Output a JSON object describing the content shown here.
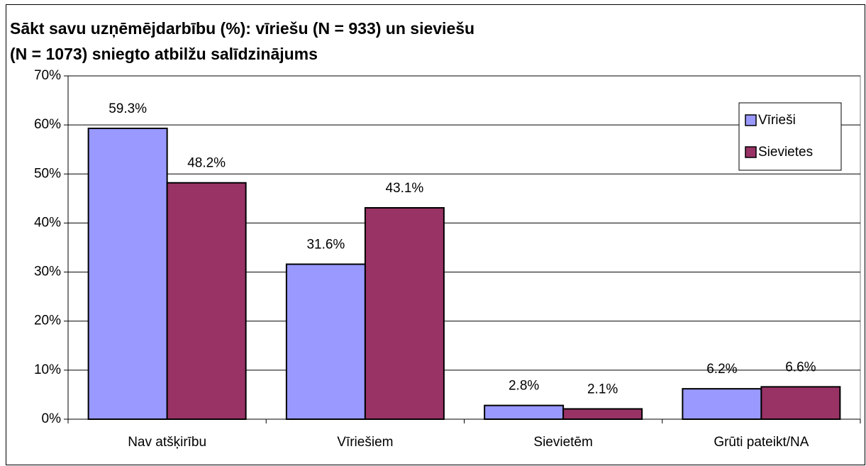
{
  "chart_data": {
    "type": "bar",
    "title": [
      "Sākt savu uzņēmējdarbību (%): vīriešu (N = 933) un sieviešu",
      "(N = 1073) sniegto atbilžu salīdzinājums"
    ],
    "categories": [
      "Nav atšķirību",
      "Vīriešiem",
      "Sievietēm",
      "Grūti pateikt/NA"
    ],
    "series": [
      {
        "name": "Vīrieši",
        "color": "#9999ff",
        "values": [
          59.3,
          31.6,
          2.8,
          6.2
        ],
        "value_labels": [
          "59.3%",
          "31.6%",
          "2.8%",
          "6.2%"
        ]
      },
      {
        "name": "Sievietes",
        "color": "#993366",
        "values": [
          48.2,
          43.1,
          2.1,
          6.6
        ],
        "value_labels": [
          "48.2%",
          "43.1%",
          "2.1%",
          "6.6%"
        ]
      }
    ],
    "ylim": [
      0,
      70
    ],
    "yticks": [
      {
        "value": 0,
        "label": "0%"
      },
      {
        "value": 10,
        "label": "10%"
      },
      {
        "value": 20,
        "label": "20%"
      },
      {
        "value": 30,
        "label": "30%"
      },
      {
        "value": 40,
        "label": "40%"
      },
      {
        "value": 50,
        "label": "50%"
      },
      {
        "value": 60,
        "label": "60%"
      },
      {
        "value": 70,
        "label": "70%"
      }
    ],
    "grid": true,
    "legend": "right"
  }
}
